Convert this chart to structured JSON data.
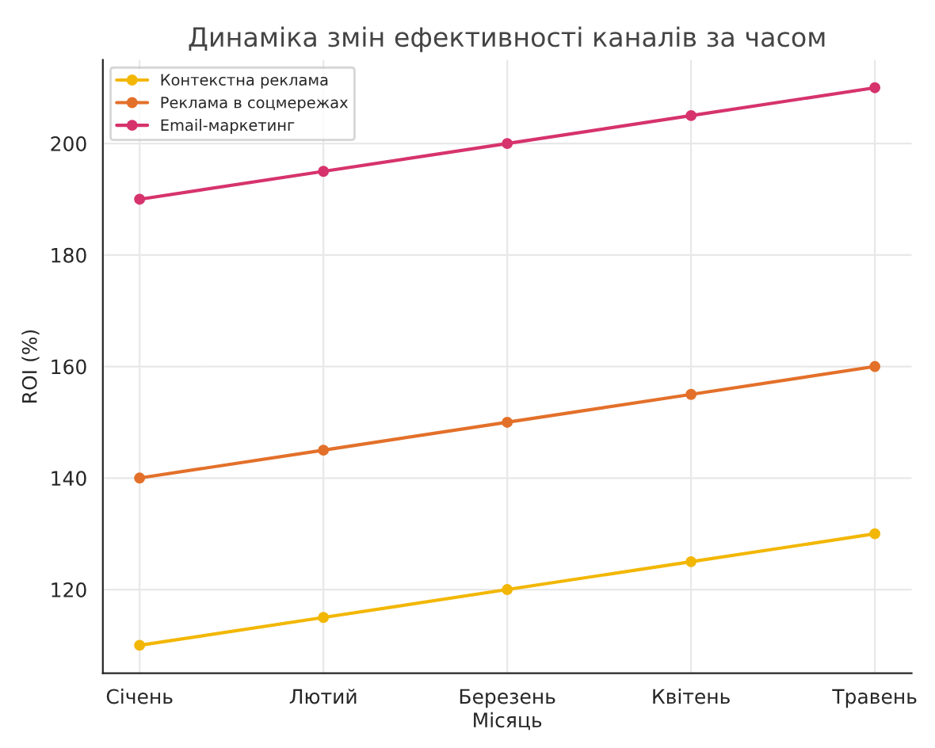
{
  "chart_data": {
    "type": "line",
    "title": "Динаміка змін ефективності каналів за часом",
    "xlabel": "Місяць",
    "ylabel": "ROI (%)",
    "categories": [
      "Січень",
      "Лютий",
      "Березень",
      "Квітень",
      "Травень"
    ],
    "series": [
      {
        "name": "Контекстна реклама",
        "color": "#f2b705",
        "values": [
          110,
          115,
          120,
          125,
          130
        ]
      },
      {
        "name": "Реклама в соцмережах",
        "color": "#e3702a",
        "values": [
          140,
          145,
          150,
          155,
          160
        ]
      },
      {
        "name": "Email-маркетинг",
        "color": "#d6336c",
        "values": [
          190,
          195,
          200,
          205,
          210
        ]
      }
    ],
    "ylim": [
      105,
      215
    ],
    "yticks": [
      120,
      140,
      160,
      180,
      200
    ],
    "grid": true,
    "legend": "top left",
    "marker": "circle",
    "line_style": "solid"
  }
}
